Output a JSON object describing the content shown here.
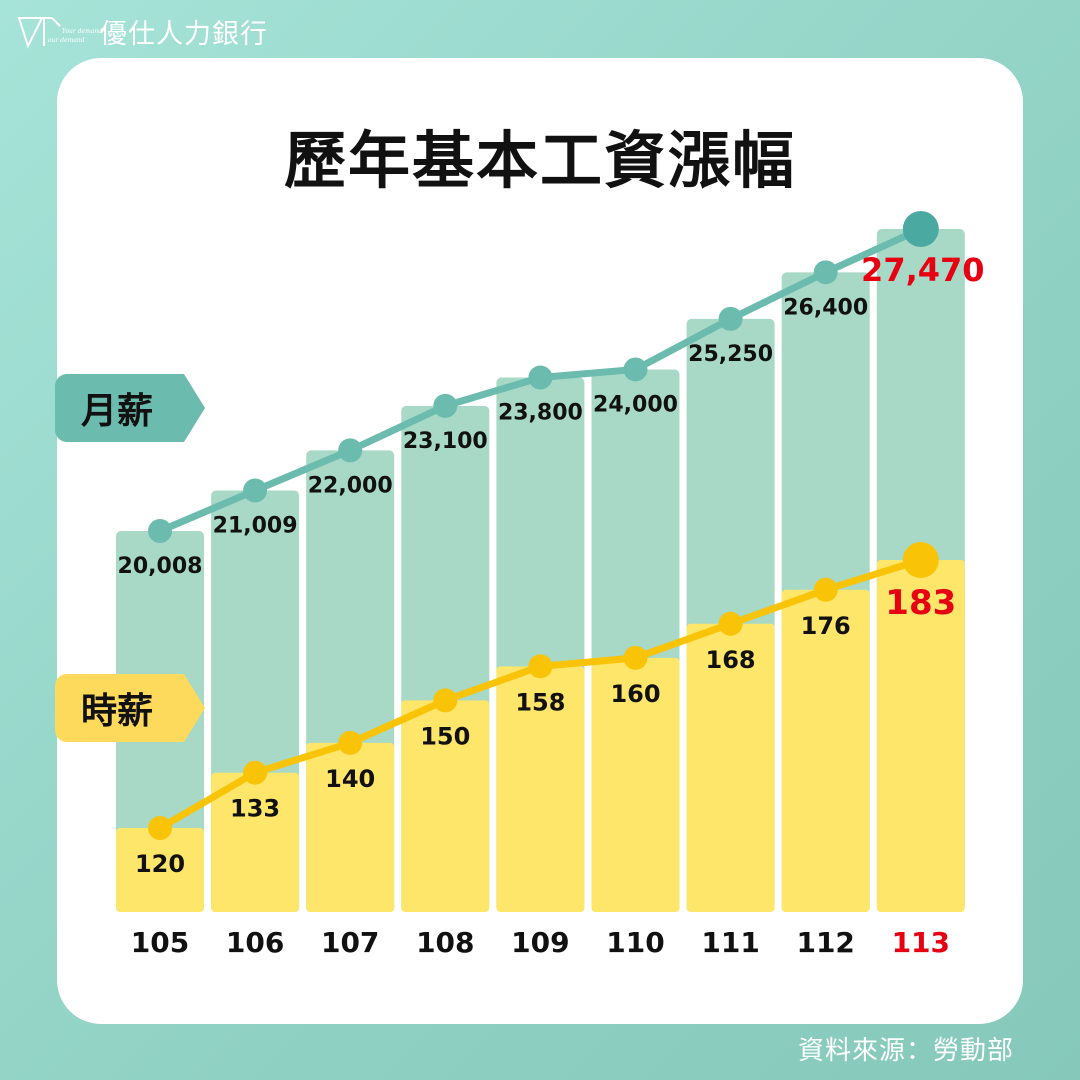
{
  "brand": {
    "name": "優仕人力銀行",
    "logo_text": [
      "Your demand",
      "our demand"
    ]
  },
  "title": "歷年基本工資漲幅",
  "source": "資料來源：勞動部",
  "colors": {
    "monthly_bar": "#a8d8c6",
    "monthly_line": "#6bbcae",
    "hourly_bar": "#fde66a",
    "hourly_line": "#f9c308",
    "highlight": "#e60012"
  },
  "chart_data": {
    "type": "bar",
    "title": "歷年基本工資漲幅",
    "categories": [
      "105",
      "106",
      "107",
      "108",
      "109",
      "110",
      "111",
      "112",
      "113"
    ],
    "series": [
      {
        "name": "月薪",
        "values": [
          20008,
          21009,
          22000,
          23100,
          23800,
          24000,
          25250,
          26400,
          27470
        ],
        "labels": [
          "20,008",
          "21,009",
          "22,000",
          "23,100",
          "23,800",
          "24,000",
          "25,250",
          "26,400",
          "27,470"
        ]
      },
      {
        "name": "時薪",
        "values": [
          120,
          133,
          140,
          150,
          158,
          160,
          168,
          176,
          183
        ],
        "labels": [
          "120",
          "133",
          "140",
          "150",
          "158",
          "160",
          "168",
          "176",
          "183"
        ]
      }
    ],
    "highlight_category": "113",
    "xlabel": "",
    "ylabel": ""
  }
}
